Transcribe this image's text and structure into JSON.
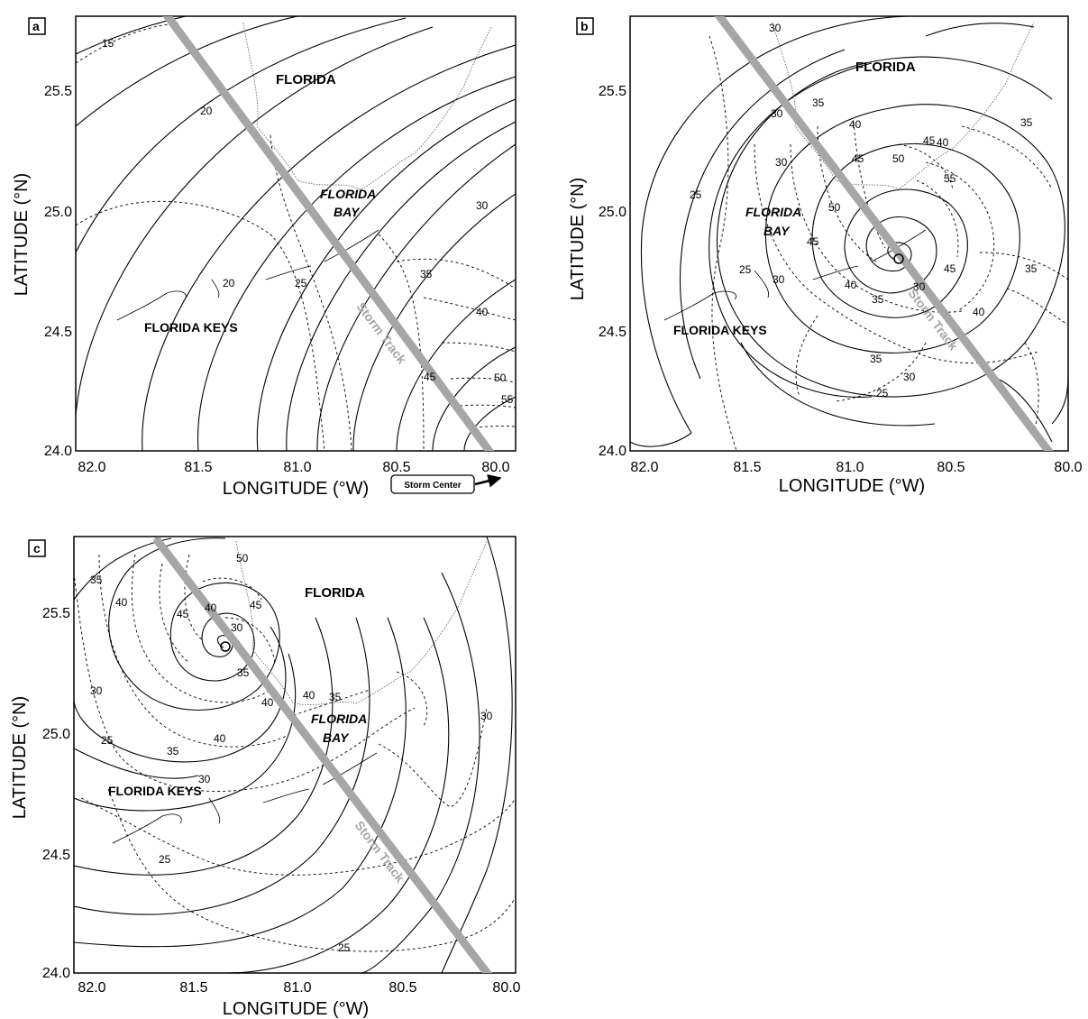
{
  "figure": {
    "x_axis_label": "LONGITUDE (°W)",
    "y_axis_label": "LATITUDE (°N)",
    "x_ticks": [
      "82.0",
      "81.5",
      "81.0",
      "80.5",
      "80.0"
    ],
    "y_ticks": [
      "24.0",
      "24.5",
      "25.0",
      "25.5"
    ],
    "x_range": [
      82.0,
      80.0
    ],
    "y_range": [
      24.0,
      25.8
    ],
    "track_color": "#a6a6a6"
  },
  "panels": [
    {
      "id": "a",
      "letter": "a",
      "storm_center_lon": 80.0,
      "storm_center_lat": 24.0,
      "place_labels": {
        "florida": "FLORIDA",
        "bay_1": "FLORIDA",
        "bay_2": "BAY",
        "keys": "FLORIDA KEYS"
      },
      "track_label": "Storm Track",
      "callout": "Storm Center",
      "contour_labels": [
        "15",
        "20",
        "20",
        "25",
        "30",
        "35",
        "40",
        "45",
        "50",
        "55"
      ]
    },
    {
      "id": "b",
      "letter": "b",
      "storm_center_lon": 80.78,
      "storm_center_lat": 24.8,
      "place_labels": {
        "florida": "FLORIDA",
        "bay_1": "FLORIDA",
        "bay_2": "BAY",
        "keys": "FLORIDA KEYS"
      },
      "track_label": "Storm Track",
      "contour_labels": [
        "30",
        "35",
        "30",
        "40",
        "30",
        "45",
        "50",
        "55",
        "45",
        "40",
        "35",
        "25",
        "50",
        "45",
        "25",
        "30",
        "40",
        "35",
        "30",
        "45",
        "40",
        "35",
        "35",
        "30",
        "25"
      ]
    },
    {
      "id": "c",
      "letter": "c",
      "storm_center_lon": 81.3,
      "storm_center_lat": 25.35,
      "place_labels": {
        "florida": "FLORIDA",
        "bay_1": "FLORIDA",
        "bay_2": "BAY",
        "keys": "FLORIDA KEYS"
      },
      "track_label": "Storm Track",
      "contour_labels": [
        "50",
        "35",
        "40",
        "45",
        "40",
        "45",
        "30",
        "35",
        "40",
        "35",
        "40",
        "30",
        "40",
        "35",
        "25",
        "30",
        "30",
        "25",
        "25"
      ]
    }
  ]
}
